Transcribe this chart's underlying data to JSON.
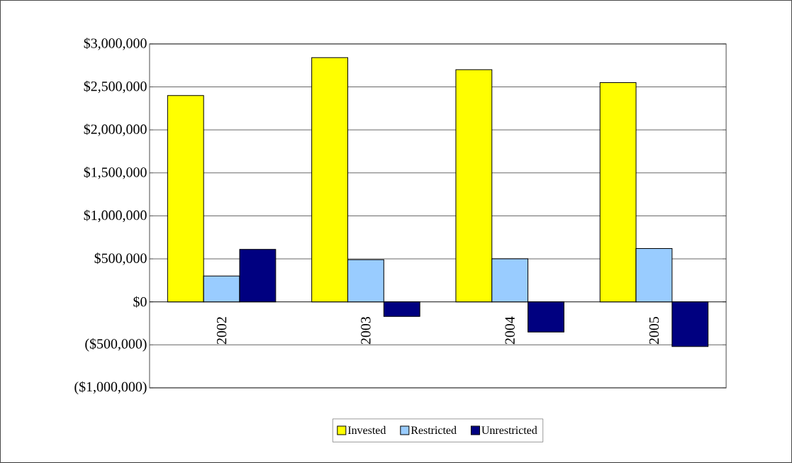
{
  "chart_data": {
    "type": "bar",
    "categories": [
      "2002",
      "2003",
      "2004",
      "2005"
    ],
    "series": [
      {
        "name": "Invested",
        "color": "#ffff00",
        "values": [
          2400000,
          2840000,
          2700000,
          2550000
        ]
      },
      {
        "name": "Restricted",
        "color": "#99ccff",
        "values": [
          300000,
          490000,
          500000,
          620000
        ]
      },
      {
        "name": "Unrestricted",
        "color": "#000080",
        "values": [
          610000,
          -170000,
          -350000,
          -520000
        ]
      }
    ],
    "ylim": [
      -1000000,
      3000000
    ],
    "yticks": [
      {
        "value": -1000000,
        "label": "($1,000,000)"
      },
      {
        "value": -500000,
        "label": "($500,000)"
      },
      {
        "value": 0,
        "label": "$0"
      },
      {
        "value": 500000,
        "label": "$500,000"
      },
      {
        "value": 1000000,
        "label": "$1,000,000"
      },
      {
        "value": 1500000,
        "label": "$1,500,000"
      },
      {
        "value": 2000000,
        "label": "$2,000,000"
      },
      {
        "value": 2500000,
        "label": "$2,500,000"
      },
      {
        "value": 3000000,
        "label": "$3,000,000"
      }
    ],
    "grid": "y",
    "legend": "bottom"
  }
}
